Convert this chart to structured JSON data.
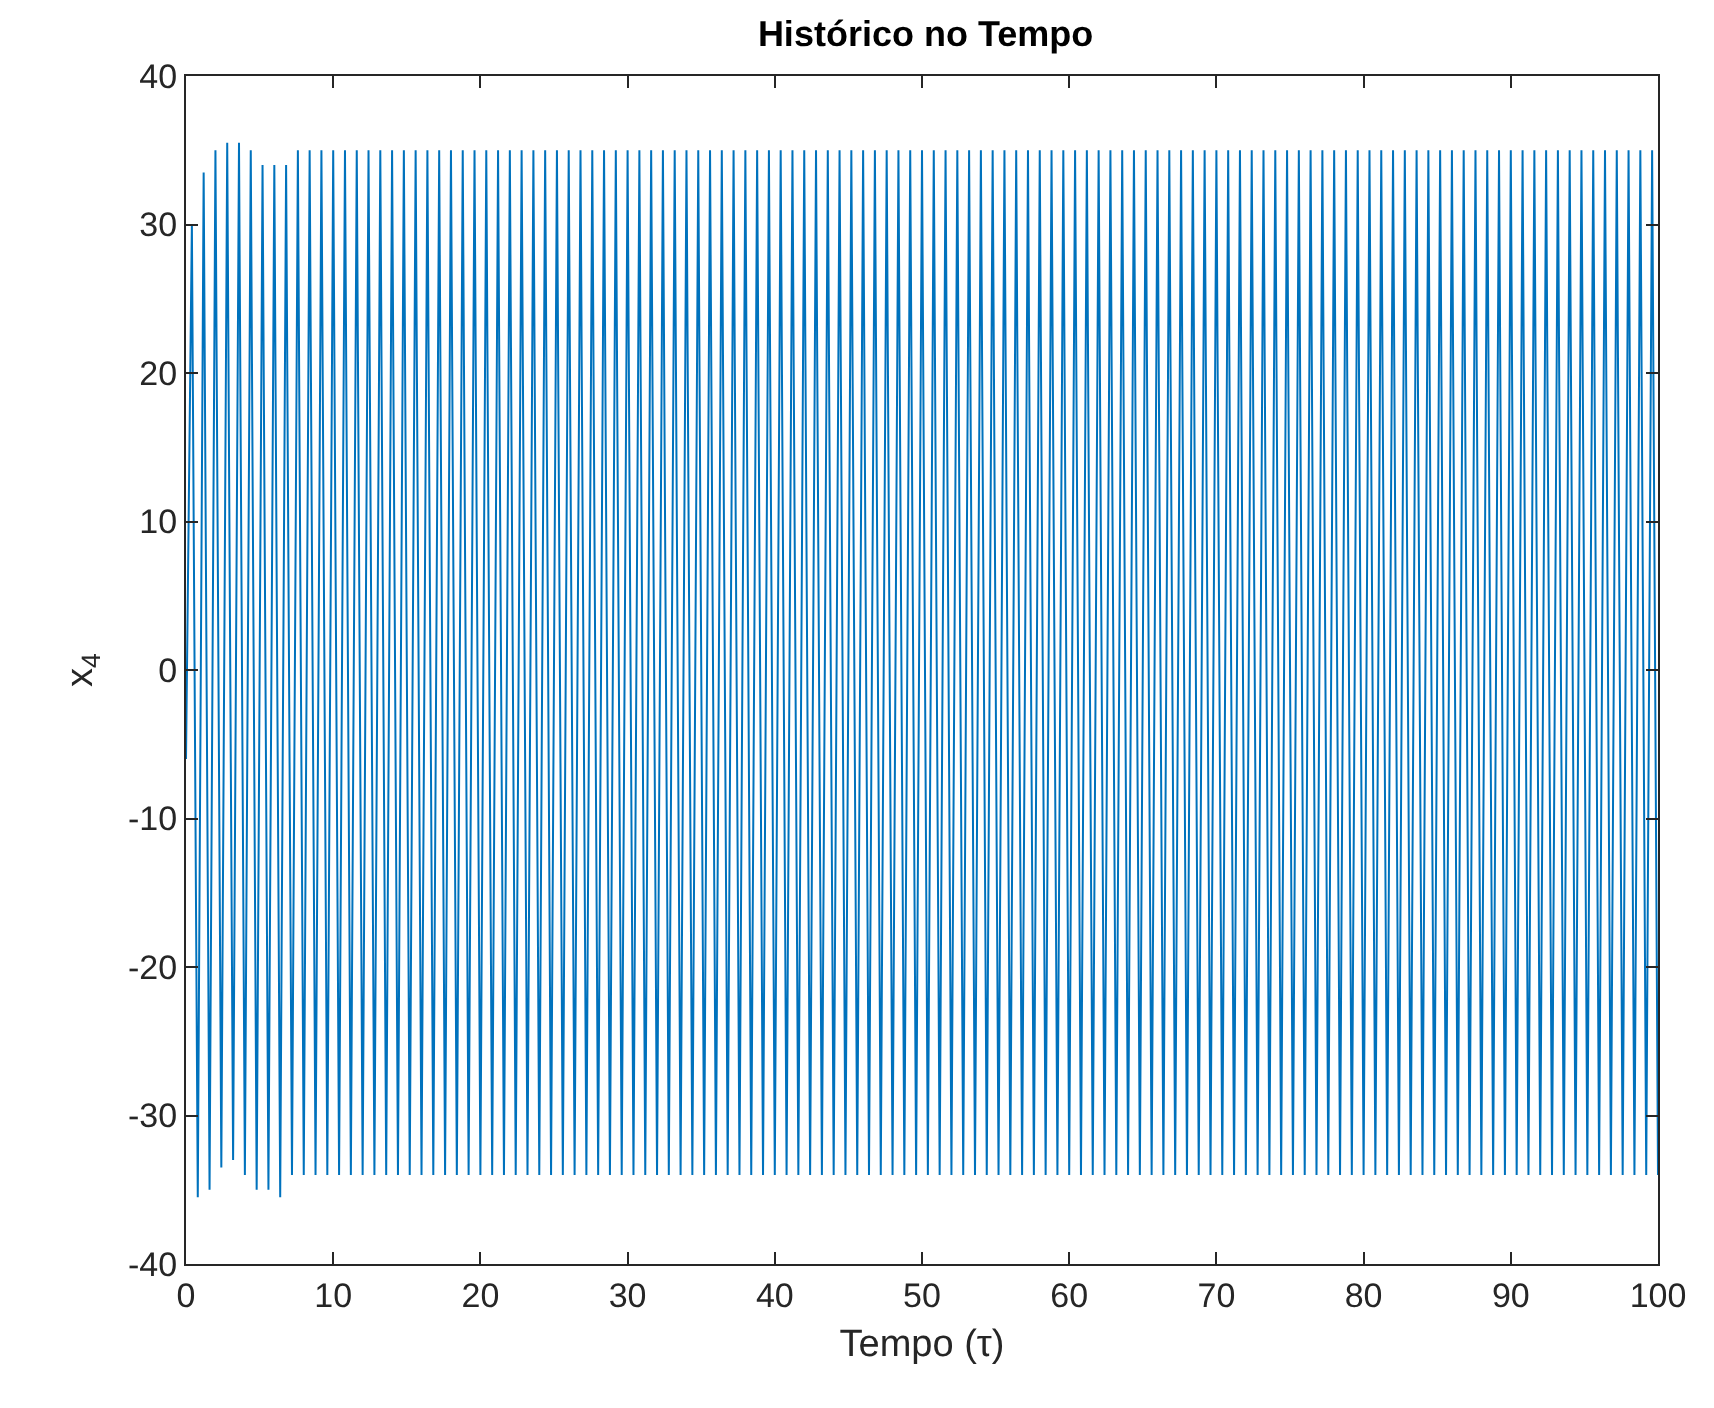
{
  "chart_data": {
    "type": "line",
    "title": "Histórico no Tempo",
    "xlabel": "Tempo (τ)",
    "ylabel": "x$_{4}$",
    "xlim": [
      0,
      100
    ],
    "xticks": [
      0,
      10,
      20,
      30,
      40,
      50,
      60,
      70,
      80,
      90,
      100
    ],
    "ylim": [
      -40,
      40
    ],
    "yticks": [
      -40,
      -30,
      -20,
      -10,
      0,
      10,
      20,
      30,
      40
    ],
    "grid": false,
    "marker": "none",
    "line_style": "solid",
    "x": [
      0,
      0.4,
      0.8,
      1.2,
      1.6,
      2,
      2.4,
      2.8,
      3.2,
      3.6,
      4,
      4.4,
      4.8,
      5.2,
      5.6,
      6,
      6.4,
      6.8,
      7.2,
      7.6,
      8,
      8.4,
      8.8,
      9.2,
      9.6,
      10,
      10.4,
      10.8,
      11.2,
      11.6,
      12,
      12.4,
      12.8,
      13.2,
      13.6,
      14,
      14.4,
      14.8,
      15.2,
      15.6,
      16,
      16.4,
      16.8,
      17.2,
      17.6,
      18,
      18.4,
      18.8,
      19.2,
      19.6,
      20,
      20.4,
      20.8,
      21.2,
      21.6,
      22,
      22.4,
      22.8,
      23.2,
      23.6,
      24,
      24.4,
      24.8,
      25.2,
      25.6,
      26,
      26.4,
      26.8,
      27.2,
      27.6,
      28,
      28.4,
      28.8,
      29.2,
      29.6,
      30,
      30.4,
      30.8,
      31.2,
      31.6,
      32,
      32.4,
      32.8,
      33.2,
      33.6,
      34,
      34.4,
      34.8,
      35.2,
      35.6,
      36,
      36.4,
      36.8,
      37.2,
      37.6,
      38,
      38.4,
      38.8,
      39.2,
      39.6,
      40,
      40.4,
      40.8,
      41.2,
      41.6,
      42,
      42.4,
      42.8,
      43.2,
      43.6,
      44,
      44.4,
      44.8,
      45.2,
      45.6,
      46,
      46.4,
      46.8,
      47.2,
      47.6,
      48,
      48.4,
      48.8,
      49.2,
      49.6,
      50,
      50.4,
      50.8,
      51.2,
      51.6,
      52,
      52.4,
      52.8,
      53.2,
      53.6,
      54,
      54.4,
      54.8,
      55.2,
      55.6,
      56,
      56.4,
      56.8,
      57.2,
      57.6,
      58,
      58.4,
      58.8,
      59.2,
      59.6,
      60,
      60.4,
      60.8,
      61.2,
      61.6,
      62,
      62.4,
      62.8,
      63.2,
      63.6,
      64,
      64.4,
      64.8,
      65.2,
      65.6,
      66,
      66.4,
      66.8,
      67.2,
      67.6,
      68,
      68.4,
      68.8,
      69.2,
      69.6,
      70,
      70.4,
      70.8,
      71.2,
      71.6,
      72,
      72.4,
      72.8,
      73.2,
      73.6,
      74,
      74.4,
      74.8,
      75.2,
      75.6,
      76,
      76.4,
      76.8,
      77.2,
      77.6,
      78,
      78.4,
      78.8,
      79.2,
      79.6,
      80,
      80.4,
      80.8,
      81.2,
      81.6,
      82,
      82.4,
      82.8,
      83.2,
      83.6,
      84,
      84.4,
      84.8,
      85.2,
      85.6,
      86,
      86.4,
      86.8,
      87.2,
      87.6,
      88,
      88.4,
      88.8,
      89.2,
      89.6,
      90,
      90.4,
      90.8,
      91.2,
      91.6,
      92,
      92.4,
      92.8,
      93.2,
      93.6,
      94,
      94.4,
      94.8,
      95.2,
      95.6,
      96,
      96.4,
      96.8,
      97.2,
      97.6,
      98,
      98.4,
      98.8,
      99.2,
      99.6,
      100
    ],
    "series": [
      {
        "color": "#0072bd",
        "values": [
          -6,
          30,
          -35.5,
          33.5,
          -35,
          35,
          -33.5,
          35.5,
          -33,
          35.5,
          -34,
          35,
          -35,
          34,
          -35,
          34,
          -35.5,
          34,
          -34,
          35,
          -34,
          35,
          -34,
          35,
          -34,
          35,
          -34,
          35,
          -34,
          35,
          -34,
          35,
          -34,
          35,
          -34,
          35,
          -34,
          35,
          -34,
          35,
          -34,
          35,
          -34,
          35,
          -34,
          35,
          -34,
          35,
          -34,
          35,
          -34,
          35,
          -34,
          35,
          -34,
          35,
          -34,
          35,
          -34,
          35,
          -34,
          35,
          -34,
          35,
          -34,
          35,
          -34,
          35,
          -34,
          35,
          -34,
          35,
          -34,
          35,
          -34,
          35,
          -34,
          35,
          -34,
          35,
          -34,
          35,
          -34,
          35,
          -34,
          35,
          -34,
          35,
          -34,
          35,
          -34,
          35,
          -34,
          35,
          -34,
          35,
          -34,
          35,
          -34,
          35,
          -34,
          35,
          -34,
          35,
          -34,
          35,
          -34,
          35,
          -34,
          35,
          -34,
          35,
          -34,
          35,
          -34,
          35,
          -34,
          35,
          -34,
          35,
          -34,
          35,
          -34,
          35,
          -34,
          35,
          -34,
          35,
          -34,
          35,
          -34,
          35,
          -34,
          35,
          -34,
          35,
          -34,
          35,
          -34,
          35,
          -34,
          35,
          -34,
          35,
          -34,
          35,
          -34,
          35,
          -34,
          35,
          -34,
          35,
          -34,
          35,
          -34,
          35,
          -34,
          35,
          -34,
          35,
          -34,
          35,
          -34,
          35,
          -34,
          35,
          -34,
          35,
          -34,
          35,
          -34,
          35,
          -34,
          35,
          -34,
          35,
          -34,
          35,
          -34,
          35,
          -34,
          35,
          -34,
          35,
          -34,
          35,
          -34,
          35,
          -34,
          35,
          -34,
          35,
          -34,
          35,
          -34,
          35,
          -34,
          35,
          -34,
          35,
          -34,
          35,
          -34,
          35,
          -34,
          35,
          -34,
          35,
          -34,
          35,
          -34,
          35,
          -34,
          35,
          -34,
          35,
          -34,
          35,
          -34,
          35,
          -34,
          35,
          -34,
          35,
          -34,
          35,
          -34,
          35,
          -34,
          35,
          -34,
          35,
          -34,
          35,
          -34,
          35,
          -34,
          35,
          -34,
          35,
          -34,
          35,
          -34,
          35,
          -34,
          35,
          -34,
          35,
          -34,
          35,
          -34
        ]
      }
    ]
  }
}
